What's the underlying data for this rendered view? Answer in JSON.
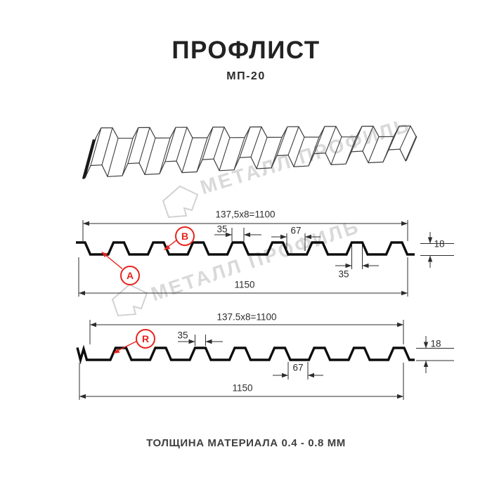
{
  "header": {
    "title": "ПРОФЛИСТ",
    "subtitle": "МП-20"
  },
  "footer": {
    "text": "ТОЛЩИНА МАТЕРИАЛА 0.4 - 0.8 ММ"
  },
  "watermark": {
    "text": "МЕТАЛЛ ПРОФИЛЬ",
    "color": "#d9d9d9"
  },
  "colors": {
    "profile_line": "#0d0d0d",
    "dimension": "#2d2d2d",
    "accent_red": "#e8231d",
    "sketch": "#3d3d3d"
  },
  "sections": {
    "s1": {
      "pitch": "137,5x8=1100",
      "rib_top": "35",
      "valley": "67",
      "height": "18",
      "rib_bottom": "35",
      "total": "1150",
      "label_a": "A",
      "label_b": "B"
    },
    "s2": {
      "pitch": "137.5x8=1100",
      "rib_top": "35",
      "valley": "67",
      "height": "18",
      "total": "1150",
      "label_r": "R"
    }
  }
}
